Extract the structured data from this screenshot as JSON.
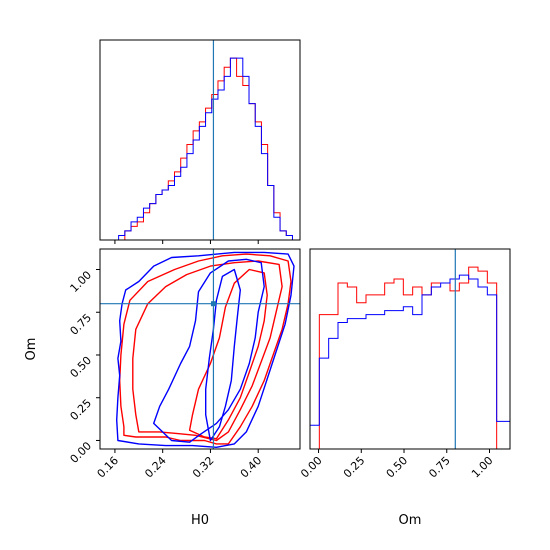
{
  "chart_data": {
    "type": "corner",
    "colors": {
      "series_a": "#ff0000",
      "series_b": "#0000ff",
      "truth": "#1f77b4"
    },
    "truths": {
      "H0": 0.325,
      "Om": 0.8
    },
    "axes_labels": {
      "h0": "H0",
      "om": "Om"
    },
    "h0_ticks": [
      {
        "value": 0.16,
        "label": "0.16"
      },
      {
        "value": 0.24,
        "label": "0.24"
      },
      {
        "value": 0.32,
        "label": "0.32"
      },
      {
        "value": 0.4,
        "label": "0.40"
      }
    ],
    "om_ticks": [
      {
        "value": 0.0,
        "label": "0.00"
      },
      {
        "value": 0.25,
        "label": "0.25"
      },
      {
        "value": 0.5,
        "label": "0.50"
      },
      {
        "value": 0.75,
        "label": "0.75"
      },
      {
        "value": 1.0,
        "label": "1.00"
      }
    ],
    "h0_range": [
      0.135,
      0.47
    ],
    "om_range": [
      -0.05,
      1.12
    ],
    "h0_hist": {
      "bin_edges": [
        0.135,
        0.1454,
        0.1558,
        0.1662,
        0.1766,
        0.187,
        0.1974,
        0.2078,
        0.2182,
        0.2286,
        0.239,
        0.2494,
        0.2598,
        0.2702,
        0.2806,
        0.291,
        0.3014,
        0.3118,
        0.3222,
        0.3326,
        0.343,
        0.3534,
        0.3638,
        0.3742,
        0.3846,
        0.395,
        0.4054,
        0.4158,
        0.4262,
        0.4366,
        0.447,
        0.4574,
        0.47
      ],
      "series": [
        {
          "name": "",
          "color": "#ff0000",
          "counts": [
            0,
            0,
            0,
            0,
            2,
            3,
            4,
            6,
            8,
            10,
            11,
            13,
            15,
            18,
            21,
            24,
            26,
            29,
            32,
            35,
            38,
            40,
            36,
            34,
            30,
            26,
            21,
            12,
            6,
            2,
            1,
            0
          ]
        },
        {
          "name": "",
          "color": "#0000ff",
          "counts": [
            0,
            0,
            0,
            1,
            2,
            4,
            5,
            7,
            8,
            10,
            11,
            12,
            14,
            16,
            19,
            22,
            25,
            28,
            31,
            33,
            36,
            40,
            40,
            36,
            30,
            25,
            19,
            12,
            5,
            2,
            1,
            0
          ]
        }
      ]
    },
    "om_hist": {
      "bin_edges": [
        -0.05,
        0.0046,
        0.0592,
        0.1138,
        0.1684,
        0.223,
        0.2776,
        0.3322,
        0.3868,
        0.4414,
        0.496,
        0.5506,
        0.6052,
        0.6598,
        0.7144,
        0.769,
        0.8236,
        0.8782,
        0.9328,
        0.9874,
        1.042,
        1.12
      ],
      "series": [
        {
          "name": "",
          "color": "#ff0000",
          "counts": [
            0,
            34,
            34,
            42,
            41,
            37,
            39,
            39,
            42,
            43,
            39,
            41,
            39,
            42,
            42,
            40,
            42,
            46,
            45,
            42,
            0
          ]
        },
        {
          "name": "",
          "color": "#0000ff",
          "counts": [
            6,
            23,
            28,
            32,
            33,
            33,
            34,
            34,
            35,
            35,
            36,
            34,
            39,
            41,
            42,
            43,
            44,
            43,
            41,
            39,
            7
          ]
        }
      ]
    },
    "contours": {
      "series_a": [
        [
          [
            0.175,
            0.03
          ],
          [
            0.195,
            0.02
          ],
          [
            0.215,
            0.02
          ],
          [
            0.245,
            0.02
          ],
          [
            0.27,
            0.0
          ],
          [
            0.31,
            0.0
          ],
          [
            0.33,
            -0.02
          ],
          [
            0.35,
            -0.02
          ],
          [
            0.37,
            0.08
          ],
          [
            0.39,
            0.2
          ],
          [
            0.41,
            0.35
          ],
          [
            0.425,
            0.5
          ],
          [
            0.44,
            0.65
          ],
          [
            0.45,
            0.8
          ],
          [
            0.455,
            0.93
          ],
          [
            0.45,
            1.05
          ],
          [
            0.42,
            1.08
          ],
          [
            0.38,
            1.09
          ],
          [
            0.34,
            1.08
          ],
          [
            0.3,
            1.05
          ],
          [
            0.26,
            1.0
          ],
          [
            0.215,
            0.93
          ],
          [
            0.185,
            0.82
          ],
          [
            0.175,
            0.68
          ],
          [
            0.17,
            0.5
          ],
          [
            0.168,
            0.35
          ],
          [
            0.17,
            0.2
          ],
          [
            0.175,
            0.08
          ]
        ],
        [
          [
            0.2,
            0.05
          ],
          [
            0.235,
            0.05
          ],
          [
            0.265,
            0.04
          ],
          [
            0.295,
            0.03
          ],
          [
            0.33,
            0.0
          ],
          [
            0.35,
            0.05
          ],
          [
            0.37,
            0.18
          ],
          [
            0.39,
            0.32
          ],
          [
            0.405,
            0.46
          ],
          [
            0.42,
            0.6
          ],
          [
            0.43,
            0.75
          ],
          [
            0.44,
            0.9
          ],
          [
            0.435,
            1.03
          ],
          [
            0.4,
            1.05
          ],
          [
            0.36,
            1.04
          ],
          [
            0.32,
            1.02
          ],
          [
            0.28,
            0.97
          ],
          [
            0.245,
            0.9
          ],
          [
            0.215,
            0.8
          ],
          [
            0.195,
            0.65
          ],
          [
            0.19,
            0.48
          ],
          [
            0.19,
            0.3
          ],
          [
            0.195,
            0.15
          ]
        ],
        [
          [
            0.285,
            0.06
          ],
          [
            0.31,
            0.02
          ],
          [
            0.33,
            0.01
          ],
          [
            0.35,
            0.12
          ],
          [
            0.37,
            0.25
          ],
          [
            0.385,
            0.4
          ],
          [
            0.4,
            0.55
          ],
          [
            0.41,
            0.7
          ],
          [
            0.415,
            0.85
          ],
          [
            0.41,
            0.98
          ],
          [
            0.385,
            1.0
          ],
          [
            0.36,
            0.92
          ],
          [
            0.345,
            0.78
          ],
          [
            0.335,
            0.6
          ],
          [
            0.32,
            0.45
          ],
          [
            0.3,
            0.3
          ],
          [
            0.29,
            0.15
          ]
        ]
      ],
      "series_b": [
        [
          [
            0.165,
            0.0
          ],
          [
            0.2,
            -0.02
          ],
          [
            0.245,
            -0.03
          ],
          [
            0.29,
            -0.03
          ],
          [
            0.33,
            -0.04
          ],
          [
            0.36,
            -0.02
          ],
          [
            0.38,
            0.05
          ],
          [
            0.4,
            0.2
          ],
          [
            0.415,
            0.36
          ],
          [
            0.43,
            0.52
          ],
          [
            0.445,
            0.68
          ],
          [
            0.455,
            0.85
          ],
          [
            0.46,
            1.02
          ],
          [
            0.45,
            1.09
          ],
          [
            0.41,
            1.1
          ],
          [
            0.36,
            1.1
          ],
          [
            0.3,
            1.08
          ],
          [
            0.255,
            1.07
          ],
          [
            0.225,
            1.02
          ],
          [
            0.2,
            0.93
          ],
          [
            0.178,
            0.88
          ],
          [
            0.172,
            0.8
          ],
          [
            0.168,
            0.7
          ],
          [
            0.17,
            0.58
          ],
          [
            0.165,
            0.48
          ],
          [
            0.168,
            0.38
          ],
          [
            0.165,
            0.25
          ],
          [
            0.163,
            0.12
          ]
        ],
        [
          [
            0.225,
            0.1
          ],
          [
            0.255,
            0.0
          ],
          [
            0.285,
            -0.01
          ],
          [
            0.305,
            0.04
          ],
          [
            0.33,
            0.1
          ],
          [
            0.35,
            0.18
          ],
          [
            0.37,
            0.3
          ],
          [
            0.385,
            0.45
          ],
          [
            0.395,
            0.6
          ],
          [
            0.4,
            0.75
          ],
          [
            0.41,
            0.9
          ],
          [
            0.405,
            1.04
          ],
          [
            0.38,
            1.06
          ],
          [
            0.35,
            1.05
          ],
          [
            0.32,
            0.98
          ],
          [
            0.3,
            0.87
          ],
          [
            0.295,
            0.7
          ],
          [
            0.285,
            0.55
          ],
          [
            0.27,
            0.45
          ],
          [
            0.25,
            0.3
          ],
          [
            0.235,
            0.2
          ]
        ],
        [
          [
            0.32,
            0.0
          ],
          [
            0.335,
            0.08
          ],
          [
            0.345,
            0.2
          ],
          [
            0.355,
            0.35
          ],
          [
            0.36,
            0.55
          ],
          [
            0.365,
            0.72
          ],
          [
            0.37,
            0.88
          ],
          [
            0.36,
            1.0
          ],
          [
            0.34,
            0.96
          ],
          [
            0.33,
            0.82
          ],
          [
            0.325,
            0.65
          ],
          [
            0.318,
            0.48
          ],
          [
            0.312,
            0.3
          ],
          [
            0.312,
            0.15
          ]
        ]
      ]
    }
  }
}
